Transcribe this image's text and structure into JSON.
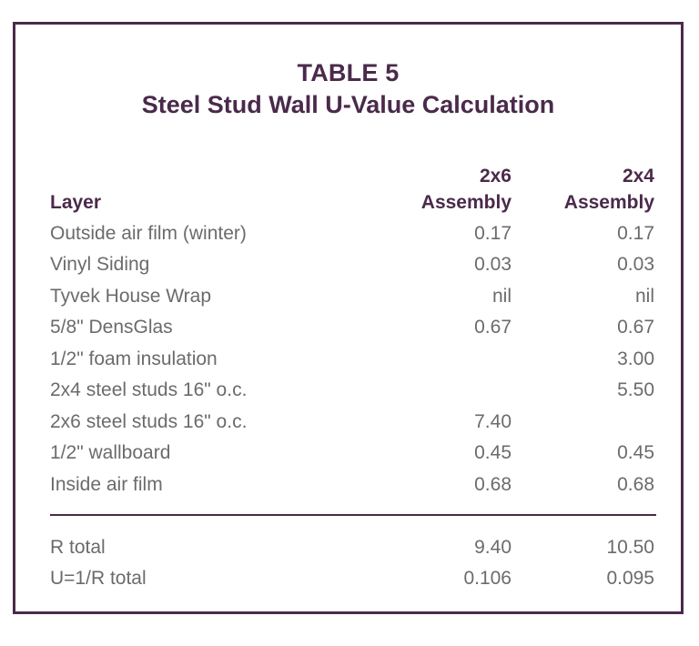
{
  "table": {
    "title": "TABLE 5",
    "subtitle": "Steel Stud Wall U-Value Calculation",
    "headers": {
      "layer": "Layer",
      "col1_line1": "2x6",
      "col1_line2": "Assembly",
      "col2_line1": "2x4",
      "col2_line2": "Assembly"
    },
    "rows": [
      {
        "layer": "Outside air film (winter)",
        "v2x6": "0.17",
        "v2x4": "0.17"
      },
      {
        "layer": "Vinyl Siding",
        "v2x6": "0.03",
        "v2x4": "0.03"
      },
      {
        "layer": "Tyvek House Wrap",
        "v2x6": "nil",
        "v2x4": "nil"
      },
      {
        "layer": "5/8\" DensGlas",
        "v2x6": "0.67",
        "v2x4": "0.67"
      },
      {
        "layer": "1/2\" foam insulation",
        "v2x6": "",
        "v2x4": "3.00"
      },
      {
        "layer": "2x4 steel studs 16\" o.c.",
        "v2x6": "",
        "v2x4": "5.50"
      },
      {
        "layer": "2x6 steel studs 16\" o.c.",
        "v2x6": "7.40",
        "v2x4": ""
      },
      {
        "layer": "1/2\" wallboard",
        "v2x6": "0.45",
        "v2x4": "0.45"
      },
      {
        "layer": "Inside air film",
        "v2x6": "0.68",
        "v2x4": "0.68"
      }
    ],
    "totals": [
      {
        "layer": "R total",
        "v2x6": "9.40",
        "v2x4": "10.50"
      },
      {
        "layer": "U=1/R total",
        "v2x6": "0.106",
        "v2x4": "0.095"
      }
    ]
  },
  "colors": {
    "accent": "#4a2a4a",
    "body_text": "#6b6b6b"
  }
}
